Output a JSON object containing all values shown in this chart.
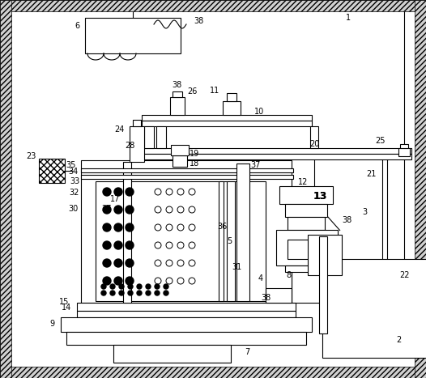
{
  "fig_width": 5.26,
  "fig_height": 4.67,
  "dpi": 100
}
